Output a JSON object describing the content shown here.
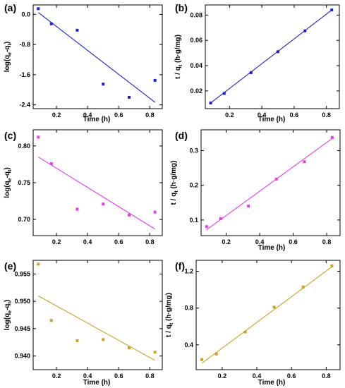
{
  "chart_data": [
    {
      "panel": "(a)",
      "type": "scatter",
      "xlabel": "Time (h)",
      "ylabel": "log(qe-qt)",
      "ylabel_main": "log(q",
      "ylabel_sub1": "e",
      "ylabel_mid": "-q",
      "ylabel_sub2": "t",
      "ylabel_end": ")",
      "xlim": [
        0.05,
        0.88
      ],
      "ylim": [
        -2.5,
        0.25
      ],
      "xticks": [
        0.2,
        0.4,
        0.6,
        0.8
      ],
      "xtick_labels": [
        "0.2",
        "0.4",
        "0.6",
        "0.8"
      ],
      "yticks": [
        0.0,
        -0.8,
        -1.6,
        -2.4
      ],
      "ytick_labels": [
        "0.0",
        "-0.8",
        "-1.6",
        "-2.4"
      ],
      "color": "#1f1fd6",
      "x": [
        0.083,
        0.167,
        0.333,
        0.5,
        0.667,
        0.833
      ],
      "y": [
        0.15,
        -0.25,
        -0.42,
        -1.85,
        -2.2,
        -1.75
      ],
      "fit": [
        [
          0.083,
          0.05
        ],
        [
          0.833,
          -2.33
        ]
      ]
    },
    {
      "panel": "(b)",
      "type": "scatter",
      "xlabel": "Time (h)",
      "ylabel": "t / qt (h·g/mg)",
      "ylabel_main": "t / q",
      "ylabel_sub1": "t",
      "ylabel_mid": " (h·g/mg)",
      "ylabel_sub2": "",
      "ylabel_end": "",
      "xlim": [
        0.05,
        0.88
      ],
      "ylim": [
        0.006,
        0.088
      ],
      "xticks": [
        0.2,
        0.4,
        0.6,
        0.8
      ],
      "xtick_labels": [
        "0.2",
        "0.4",
        "0.6",
        "0.8"
      ],
      "yticks": [
        0.02,
        0.04,
        0.06,
        0.08
      ],
      "ytick_labels": [
        "0.02",
        "0.04",
        "0.06",
        "0.08"
      ],
      "color": "#1f1fd6",
      "x": [
        0.083,
        0.167,
        0.333,
        0.5,
        0.667,
        0.833
      ],
      "y": [
        0.0105,
        0.018,
        0.0345,
        0.051,
        0.0675,
        0.084
      ],
      "fit": [
        [
          0.083,
          0.0105
        ],
        [
          0.833,
          0.084
        ]
      ]
    },
    {
      "panel": "(c)",
      "type": "scatter",
      "xlabel": "",
      "ylabel": "log(qe-qt)",
      "ylabel_main": "log(q",
      "ylabel_sub1": "e",
      "ylabel_mid": "-q",
      "ylabel_sub2": "t",
      "ylabel_end": ")",
      "xlim": [
        0.05,
        0.88
      ],
      "ylim": [
        0.678,
        0.822
      ],
      "xticks": [
        0.2,
        0.4,
        0.6,
        0.8
      ],
      "xtick_labels": [
        "0.2",
        "0.4",
        "0.6",
        "0.8"
      ],
      "yticks": [
        0.7,
        0.75,
        0.8
      ],
      "ytick_labels": [
        "0.70",
        "0.75",
        "0.80"
      ],
      "color": "#e63ce6",
      "x": [
        0.083,
        0.167,
        0.333,
        0.5,
        0.667,
        0.833
      ],
      "y": [
        0.812,
        0.776,
        0.714,
        0.721,
        0.706,
        0.71
      ],
      "fit": [
        [
          0.083,
          0.785
        ],
        [
          0.833,
          0.687
        ]
      ]
    },
    {
      "panel": "(d)",
      "type": "scatter",
      "xlabel": "Time (h)",
      "ylabel": "t / qt (h·g/mg)",
      "ylabel_main": "t / q",
      "ylabel_sub1": "t",
      "ylabel_mid": " (h·g/mg)",
      "ylabel_sub2": "",
      "ylabel_end": "",
      "xlim": [
        0.05,
        0.88
      ],
      "ylim": [
        0.055,
        0.36
      ],
      "xticks": [
        0.2,
        0.4,
        0.6,
        0.8
      ],
      "xtick_labels": [
        "0.2",
        "0.4",
        "0.6",
        "0.8"
      ],
      "yticks": [
        0.1,
        0.2,
        0.3
      ],
      "ytick_labels": [
        "0.1",
        "0.2",
        "0.3"
      ],
      "color": "#e63ce6",
      "x": [
        0.083,
        0.167,
        0.333,
        0.5,
        0.667,
        0.833
      ],
      "y": [
        0.081,
        0.104,
        0.14,
        0.218,
        0.268,
        0.338
      ],
      "fit": [
        [
          0.083,
          0.072
        ],
        [
          0.833,
          0.335
        ]
      ]
    },
    {
      "panel": "(e)",
      "type": "scatter",
      "xlabel": "Time (h)",
      "ylabel": "log(qe-qt)",
      "ylabel_main": "log(q",
      "ylabel_sub1": "e",
      "ylabel_mid": "-q",
      "ylabel_sub2": "t",
      "ylabel_end": ")",
      "xlim": [
        0.05,
        0.88
      ],
      "ylim": [
        0.9375,
        0.9575
      ],
      "xticks": [
        0.2,
        0.4,
        0.6,
        0.8
      ],
      "xtick_labels": [
        "0.2",
        "0.4",
        "0.6",
        "0.8"
      ],
      "yticks": [
        0.94,
        0.945,
        0.95,
        0.955
      ],
      "ytick_labels": [
        "0.940",
        "0.945",
        "0.950",
        "0.955"
      ],
      "color": "#c9a227",
      "x": [
        0.083,
        0.167,
        0.333,
        0.5,
        0.667,
        0.833
      ],
      "y": [
        0.9568,
        0.9465,
        0.9428,
        0.943,
        0.9415,
        0.9407
      ],
      "fit": [
        [
          0.083,
          0.951
        ],
        [
          0.833,
          0.9392
        ]
      ]
    },
    {
      "panel": "(f)",
      "type": "scatter",
      "xlabel": "Time (h)",
      "ylabel": "t / qt (h·g/mg)",
      "ylabel_main": "t / q",
      "ylabel_sub1": "t",
      "ylabel_mid": " (h·g/mg)",
      "ylabel_sub2": "",
      "ylabel_end": "",
      "xlim": [
        0.05,
        0.88
      ],
      "ylim": [
        0.13,
        1.32
      ],
      "xticks": [
        0.2,
        0.4,
        0.6,
        0.8
      ],
      "xtick_labels": [
        "0.2",
        "0.4",
        "0.6",
        "0.8"
      ],
      "yticks": [
        0.4,
        0.8,
        1.2
      ],
      "ytick_labels": [
        "0.4",
        "0.8",
        "1.2"
      ],
      "color": "#c9a227",
      "x": [
        0.083,
        0.167,
        0.333,
        0.5,
        0.667,
        0.833
      ],
      "y": [
        0.24,
        0.3,
        0.54,
        0.81,
        1.03,
        1.26
      ],
      "fit": [
        [
          0.083,
          0.2
        ],
        [
          0.833,
          1.25
        ]
      ]
    }
  ]
}
